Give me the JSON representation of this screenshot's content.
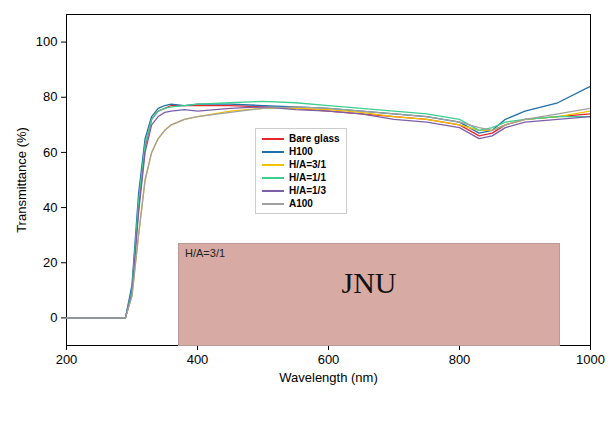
{
  "chart_data": {
    "type": "line",
    "x_label": "Wavelength (nm)",
    "y_label": "Transmittance (%)",
    "xlim": [
      200,
      1000
    ],
    "xticks": [
      200,
      400,
      600,
      800,
      1000
    ],
    "ylim": [
      -10,
      110
    ],
    "yticks": [
      0,
      20,
      40,
      60,
      80,
      100
    ],
    "grid": false,
    "legend": "center",
    "annotations": [
      {
        "text": "H/A=3/1"
      },
      {
        "text": "JNU"
      }
    ],
    "x": [
      200,
      290,
      300,
      310,
      320,
      330,
      340,
      350,
      360,
      380,
      400,
      450,
      500,
      550,
      600,
      650,
      700,
      750,
      800,
      830,
      850,
      870,
      900,
      950,
      1000
    ],
    "series": [
      {
        "name": "Bare glass",
        "color": "#e8262a",
        "values": [
          0,
          0,
          10,
          40,
          62,
          72,
          75,
          76,
          77,
          77,
          77,
          77,
          76.5,
          76,
          75,
          74,
          73,
          72,
          70,
          66,
          67,
          70,
          72,
          73,
          74
        ]
      },
      {
        "name": "H100",
        "color": "#1f6fa8",
        "values": [
          0,
          0,
          12,
          45,
          65,
          73,
          76,
          77,
          77.5,
          77,
          77.5,
          77.5,
          77,
          76.5,
          76,
          75,
          74,
          73,
          71,
          67,
          68,
          72,
          75,
          78,
          84
        ]
      },
      {
        "name": "H/A=3/1",
        "color": "#f2c200",
        "values": [
          0,
          0,
          8,
          30,
          50,
          60,
          65,
          68,
          70,
          72,
          73,
          75,
          76,
          76,
          75.5,
          74.5,
          73,
          72,
          70,
          68,
          68,
          70,
          72,
          73,
          75
        ]
      },
      {
        "name": "H/A=1/1",
        "color": "#3ecf8e",
        "values": [
          0,
          0,
          10,
          42,
          63,
          72,
          75,
          76,
          76.5,
          77,
          77.5,
          78,
          78.5,
          78,
          77,
          76,
          75,
          74,
          72,
          68,
          69,
          71,
          72,
          73,
          73
        ]
      },
      {
        "name": "H/A=1/3",
        "color": "#7b5fa8",
        "values": [
          0,
          0,
          9,
          38,
          60,
          70,
          73,
          74.5,
          75,
          75.5,
          75,
          76,
          76.5,
          75.5,
          75,
          74,
          72,
          71,
          69,
          65,
          66,
          69,
          71,
          72,
          73
        ]
      },
      {
        "name": "A100",
        "color": "#a0a0a0",
        "values": [
          0,
          0,
          8,
          30,
          50,
          60,
          65,
          68,
          70,
          72,
          73,
          74.5,
          76,
          76.5,
          76,
          75,
          74,
          73,
          71,
          69,
          68,
          70,
          72,
          74,
          76
        ]
      }
    ]
  }
}
